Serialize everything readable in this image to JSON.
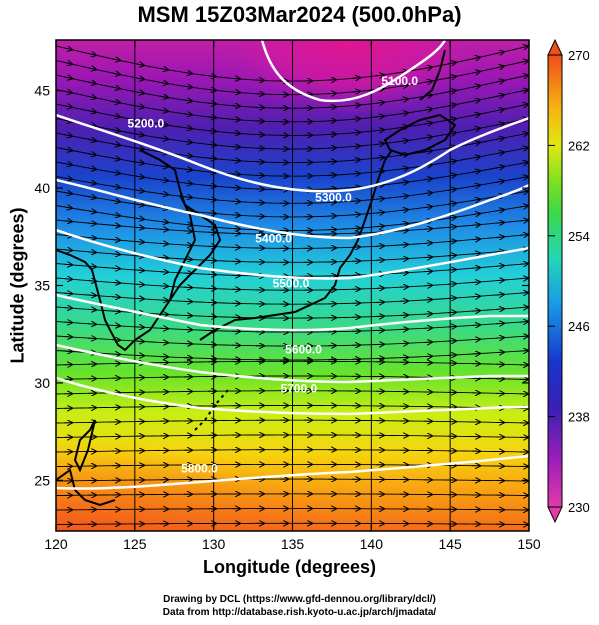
{
  "title": "MSM 15Z03Mar2024 (500.0hPa)",
  "xlabel": "Longitude (degrees)",
  "ylabel": "Latitude  (degrees)",
  "credits": {
    "line1": "Drawing by DCL (https://www.gfd-dennou.org/library/dcl/)",
    "line2": "Data from http://database.rish.kyoto-u.ac.jp/arch/jmadata/"
  },
  "chart_data": {
    "type": "heatmap",
    "x_ticks": [
      120,
      125,
      130,
      135,
      140,
      145,
      150
    ],
    "y_ticks": [
      25,
      30,
      35,
      40,
      45
    ],
    "xlim": [
      120,
      150
    ],
    "ylim": [
      22.4,
      47.6
    ],
    "colorbar": {
      "ticks": [
        230,
        238,
        246,
        254,
        262,
        270
      ],
      "range": [
        230,
        270
      ]
    },
    "contour_labels": [
      {
        "text": "5100.0",
        "lon": 141.8,
        "lat": 45.3
      },
      {
        "text": "5200.0",
        "lon": 125.7,
        "lat": 43.1
      },
      {
        "text": "5300.0",
        "lon": 137.6,
        "lat": 39.3
      },
      {
        "text": "5400.0",
        "lon": 133.8,
        "lat": 37.2
      },
      {
        "text": "5500.0",
        "lon": 134.9,
        "lat": 34.9
      },
      {
        "text": "5600.0",
        "lon": 135.7,
        "lat": 31.5
      },
      {
        "text": "5700.0",
        "lon": 135.4,
        "lat": 29.5
      },
      {
        "text": "5800.0",
        "lon": 129.1,
        "lat": 25.4
      }
    ]
  }
}
